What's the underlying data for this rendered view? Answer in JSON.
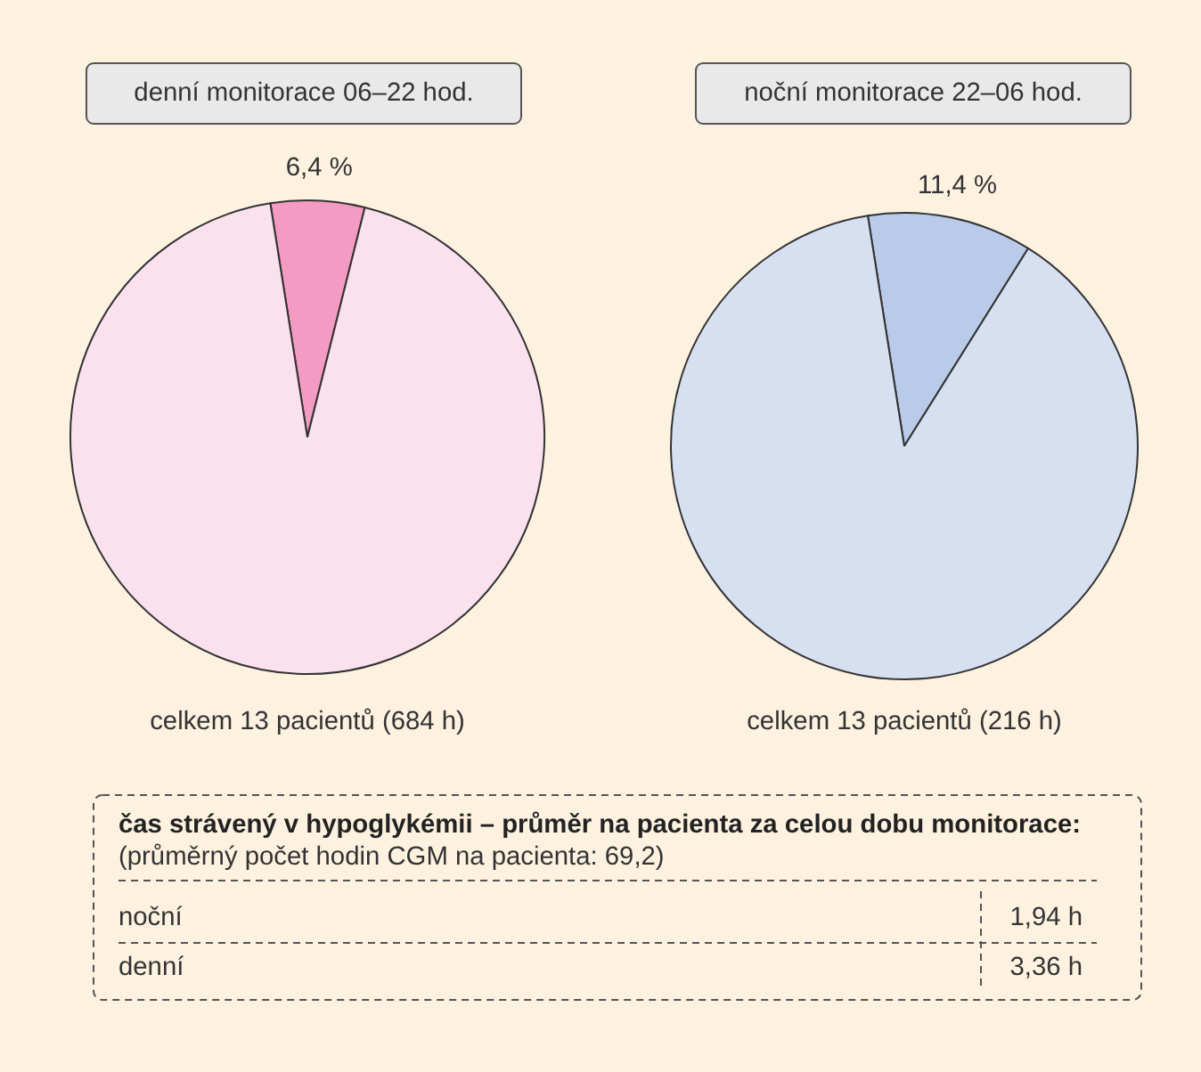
{
  "chart_data": [
    {
      "type": "pie",
      "title": "denní monitorace 06–22 hod.",
      "categories": [
        null,
        null
      ],
      "values": [
        6.4,
        93.6
      ],
      "colors": [
        "#f39bc2",
        "#fbe1ee"
      ],
      "value_labels": [
        "6,4 %",
        null
      ],
      "annotations": [
        "celkem 13 pacientů (684 h)"
      ]
    },
    {
      "type": "pie",
      "title": "noční monitorace 22–06 hod.",
      "categories": [
        null,
        null
      ],
      "values": [
        11.4,
        88.6
      ],
      "colors": [
        "#b9cbe9",
        "#d6e0f1"
      ],
      "value_labels": [
        "11,4 %",
        null
      ],
      "annotations": [
        "celkem 13 pacientů (216 h)"
      ]
    },
    {
      "type": "other",
      "title": "čas strávený v hypoglykémii – průměr na pacienta za celou dobu monitorace:",
      "subtitle": "(průměrný počet hodin CGM na pacienta: 69,2)",
      "categories": [
        "noční",
        "denní"
      ],
      "values": [
        1.94,
        3.36
      ],
      "value_labels": [
        "1,94 h",
        "3,36 h"
      ]
    }
  ]
}
